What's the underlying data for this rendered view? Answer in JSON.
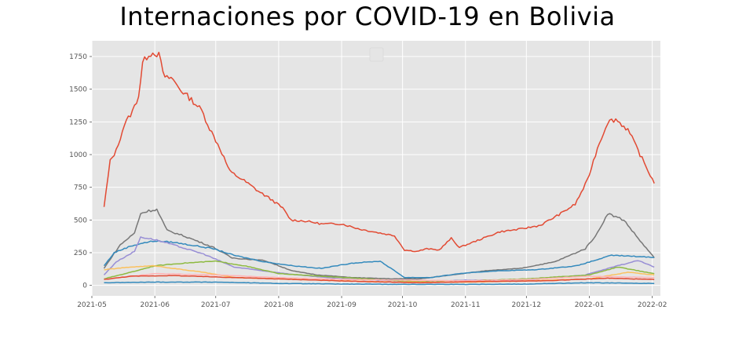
{
  "chart_data": {
    "type": "line",
    "title": "Internaciones por COVID-19 en Bolivia",
    "xlabel": "",
    "ylabel": "",
    "grid": true,
    "x_start": "2021-05-07",
    "x_end": "2022-02-02",
    "xlim": [
      "2021-05-01",
      "2022-02-05"
    ],
    "ylim": [
      -80,
      1870
    ],
    "y_ticks": [
      0,
      250,
      500,
      750,
      1000,
      1250,
      1500,
      1750
    ],
    "x_ticks": [
      "2021-05",
      "2021-06",
      "2021-07",
      "2021-08",
      "2021-09",
      "2021-10",
      "2021-11",
      "2021-12",
      "2022-01",
      "2022-02"
    ],
    "legend": {
      "placement": "top-center",
      "entries": []
    },
    "series": [
      {
        "color": "#E24A33",
        "points": [
          [
            "2021-05-07",
            600
          ],
          [
            "2021-05-10",
            950
          ],
          [
            "2021-05-13",
            1030
          ],
          [
            "2021-05-17",
            1230
          ],
          [
            "2021-05-21",
            1330
          ],
          [
            "2021-05-24",
            1450
          ],
          [
            "2021-05-26",
            1700
          ],
          [
            "2021-05-29",
            1770
          ],
          [
            "2021-06-01",
            1780
          ],
          [
            "2021-06-03",
            1760
          ],
          [
            "2021-06-06",
            1580
          ],
          [
            "2021-06-09",
            1590
          ],
          [
            "2021-06-14",
            1490
          ],
          [
            "2021-06-19",
            1420
          ],
          [
            "2021-06-24",
            1340
          ],
          [
            "2021-06-28",
            1200
          ],
          [
            "2021-07-03",
            1050
          ],
          [
            "2021-07-08",
            870
          ],
          [
            "2021-07-15",
            800
          ],
          [
            "2021-07-22",
            720
          ],
          [
            "2021-07-29",
            650
          ],
          [
            "2021-08-03",
            590
          ],
          [
            "2021-08-07",
            500
          ],
          [
            "2021-08-15",
            490
          ],
          [
            "2021-08-22",
            470
          ],
          [
            "2021-09-01",
            470
          ],
          [
            "2021-09-10",
            430
          ],
          [
            "2021-09-20",
            400
          ],
          [
            "2021-09-27",
            380
          ],
          [
            "2021-10-02",
            270
          ],
          [
            "2021-10-08",
            260
          ],
          [
            "2021-10-13",
            280
          ],
          [
            "2021-10-19",
            270
          ],
          [
            "2021-10-25",
            360
          ],
          [
            "2021-10-29",
            290
          ],
          [
            "2021-11-08",
            350
          ],
          [
            "2021-11-18",
            410
          ],
          [
            "2021-11-28",
            430
          ],
          [
            "2021-12-08",
            460
          ],
          [
            "2021-12-18",
            550
          ],
          [
            "2021-12-25",
            620
          ],
          [
            "2021-12-31",
            800
          ],
          [
            "2022-01-05",
            1050
          ],
          [
            "2022-01-10",
            1250
          ],
          [
            "2022-01-14",
            1270
          ],
          [
            "2022-01-20",
            1190
          ],
          [
            "2022-01-26",
            1000
          ],
          [
            "2022-02-02",
            780
          ]
        ]
      },
      {
        "color": "#777777",
        "points": [
          [
            "2021-05-07",
            130
          ],
          [
            "2021-05-10",
            200
          ],
          [
            "2021-05-15",
            310
          ],
          [
            "2021-05-22",
            400
          ],
          [
            "2021-05-25",
            550
          ],
          [
            "2021-05-29",
            570
          ],
          [
            "2021-06-02",
            580
          ],
          [
            "2021-06-07",
            420
          ],
          [
            "2021-06-15",
            380
          ],
          [
            "2021-06-30",
            290
          ],
          [
            "2021-07-09",
            210
          ],
          [
            "2021-07-25",
            190
          ],
          [
            "2021-08-08",
            110
          ],
          [
            "2021-08-20",
            80
          ],
          [
            "2021-09-06",
            60
          ],
          [
            "2021-09-25",
            50
          ],
          [
            "2021-10-10",
            50
          ],
          [
            "2021-10-25",
            80
          ],
          [
            "2021-11-10",
            110
          ],
          [
            "2021-11-28",
            130
          ],
          [
            "2021-12-15",
            180
          ],
          [
            "2021-12-30",
            280
          ],
          [
            "2022-01-05",
            400
          ],
          [
            "2022-01-10",
            550
          ],
          [
            "2022-01-18",
            500
          ],
          [
            "2022-01-25",
            360
          ],
          [
            "2022-02-02",
            210
          ]
        ]
      },
      {
        "color": "#348ABD",
        "points": [
          [
            "2021-05-07",
            150
          ],
          [
            "2021-05-12",
            250
          ],
          [
            "2021-05-20",
            300
          ],
          [
            "2021-05-25",
            320
          ],
          [
            "2021-06-01",
            340
          ],
          [
            "2021-06-10",
            330
          ],
          [
            "2021-06-30",
            280
          ],
          [
            "2021-07-10",
            230
          ],
          [
            "2021-07-25",
            180
          ],
          [
            "2021-08-08",
            150
          ],
          [
            "2021-08-22",
            130
          ],
          [
            "2021-09-06",
            170
          ],
          [
            "2021-09-20",
            185
          ],
          [
            "2021-10-02",
            60
          ],
          [
            "2021-10-15",
            60
          ],
          [
            "2021-10-29",
            90
          ],
          [
            "2021-11-15",
            110
          ],
          [
            "2021-12-06",
            120
          ],
          [
            "2021-12-26",
            150
          ],
          [
            "2022-01-12",
            230
          ],
          [
            "2022-01-26",
            220
          ],
          [
            "2022-02-02",
            215
          ]
        ]
      },
      {
        "color": "#988ED5",
        "points": [
          [
            "2021-05-07",
            80
          ],
          [
            "2021-05-13",
            180
          ],
          [
            "2021-05-22",
            260
          ],
          [
            "2021-05-25",
            370
          ],
          [
            "2021-06-01",
            350
          ],
          [
            "2021-06-10",
            310
          ],
          [
            "2021-06-25",
            240
          ],
          [
            "2021-07-10",
            140
          ],
          [
            "2021-07-25",
            110
          ],
          [
            "2021-08-10",
            80
          ],
          [
            "2021-09-01",
            50
          ],
          [
            "2021-09-20",
            40
          ],
          [
            "2021-10-10",
            30
          ],
          [
            "2021-11-01",
            40
          ],
          [
            "2021-12-01",
            40
          ],
          [
            "2021-12-30",
            80
          ],
          [
            "2022-01-15",
            150
          ],
          [
            "2022-01-25",
            190
          ],
          [
            "2022-02-02",
            140
          ]
        ]
      },
      {
        "color": "#8EBA42",
        "points": [
          [
            "2021-05-07",
            50
          ],
          [
            "2021-05-20",
            100
          ],
          [
            "2021-06-01",
            150
          ],
          [
            "2021-06-15",
            170
          ],
          [
            "2021-07-01",
            185
          ],
          [
            "2021-07-15",
            150
          ],
          [
            "2021-08-01",
            90
          ],
          [
            "2021-09-01",
            60
          ],
          [
            "2021-10-01",
            35
          ],
          [
            "2021-11-01",
            35
          ],
          [
            "2021-12-01",
            50
          ],
          [
            "2022-01-01",
            80
          ],
          [
            "2022-01-15",
            140
          ],
          [
            "2022-02-02",
            90
          ]
        ]
      },
      {
        "color": "#FBC15E",
        "points": [
          [
            "2021-05-07",
            120
          ],
          [
            "2021-05-20",
            140
          ],
          [
            "2021-06-01",
            150
          ],
          [
            "2021-06-10",
            130
          ],
          [
            "2021-06-25",
            100
          ],
          [
            "2021-07-10",
            60
          ],
          [
            "2021-08-01",
            50
          ],
          [
            "2021-09-01",
            35
          ],
          [
            "2021-10-01",
            25
          ],
          [
            "2021-11-01",
            25
          ],
          [
            "2021-12-01",
            35
          ],
          [
            "2022-01-01",
            50
          ],
          [
            "2022-01-20",
            100
          ],
          [
            "2022-02-02",
            80
          ]
        ]
      },
      {
        "color": "#FFB5B8",
        "points": [
          [
            "2021-05-07",
            45
          ],
          [
            "2021-06-01",
            90
          ],
          [
            "2021-07-01",
            80
          ],
          [
            "2021-08-01",
            60
          ],
          [
            "2021-09-01",
            45
          ],
          [
            "2021-10-01",
            40
          ],
          [
            "2021-11-01",
            35
          ],
          [
            "2021-12-01",
            45
          ],
          [
            "2022-01-01",
            70
          ],
          [
            "2022-02-02",
            60
          ]
        ]
      },
      {
        "color": "#E24A33",
        "points": [
          [
            "2021-05-07",
            45
          ],
          [
            "2021-05-20",
            70
          ],
          [
            "2021-06-10",
            75
          ],
          [
            "2021-07-10",
            60
          ],
          [
            "2021-08-10",
            45
          ],
          [
            "2021-09-10",
            30
          ],
          [
            "2021-10-10",
            20
          ],
          [
            "2021-11-10",
            30
          ],
          [
            "2021-12-10",
            35
          ],
          [
            "2022-01-10",
            55
          ],
          [
            "2022-02-02",
            45
          ]
        ]
      },
      {
        "color": "#348ABD",
        "points": [
          [
            "2021-05-07",
            20
          ],
          [
            "2021-06-01",
            25
          ],
          [
            "2021-07-01",
            25
          ],
          [
            "2021-08-01",
            15
          ],
          [
            "2021-09-01",
            10
          ],
          [
            "2021-10-01",
            8
          ],
          [
            "2021-11-01",
            8
          ],
          [
            "2021-12-01",
            10
          ],
          [
            "2022-01-01",
            20
          ],
          [
            "2022-02-02",
            15
          ]
        ]
      }
    ]
  }
}
